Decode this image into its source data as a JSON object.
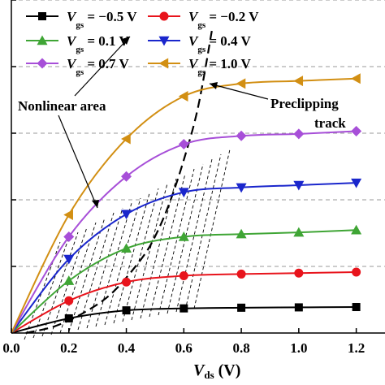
{
  "chart_data": {
    "type": "line",
    "xlabel": {
      "var": "V",
      "sub": "ds",
      "unit": " (V)"
    },
    "xlim": [
      0,
      1.3
    ],
    "ylim": [
      0,
      1.0
    ],
    "x_ticks": [
      "0.0",
      "0.2",
      "0.4",
      "0.6",
      "0.8",
      "1.0",
      "1.2"
    ],
    "grid_y": [
      0.2,
      0.4,
      0.6,
      0.8,
      1.0
    ],
    "x": [
      0.0,
      0.2,
      0.4,
      0.6,
      0.8,
      1.0,
      1.2
    ],
    "series": [
      {
        "name": "−0.5 V",
        "color": "#000000",
        "marker": "square",
        "values": [
          0.0,
          0.044,
          0.068,
          0.074,
          0.076,
          0.077,
          0.078
        ]
      },
      {
        "name": "−0.2 V",
        "color": "#e8141c",
        "marker": "circle",
        "values": [
          0.0,
          0.097,
          0.153,
          0.172,
          0.177,
          0.18,
          0.183
        ]
      },
      {
        "name": "0.1 V",
        "color": "#3fa535",
        "marker": "triangle-up",
        "values": [
          0.0,
          0.157,
          0.254,
          0.289,
          0.297,
          0.302,
          0.309
        ]
      },
      {
        "name": "0.4 V",
        "color": "#1a26cc",
        "marker": "triangle-down",
        "values": [
          0.0,
          0.222,
          0.357,
          0.423,
          0.437,
          0.444,
          0.451
        ]
      },
      {
        "name": "0.7 V",
        "color": "#a74fd8",
        "marker": "diamond",
        "values": [
          0.0,
          0.289,
          0.47,
          0.567,
          0.592,
          0.598,
          0.606
        ]
      },
      {
        "name": "1.0 V",
        "color": "#d28f13",
        "marker": "triangle-left",
        "values": [
          0.0,
          0.355,
          0.583,
          0.711,
          0.749,
          0.757,
          0.764
        ]
      }
    ],
    "legend": {
      "var": "V",
      "sub": "gs",
      "position": "top-left"
    },
    "annotations": [
      {
        "text": "Nonlinear area"
      },
      {
        "text": "Preclipping"
      },
      {
        "text": "track"
      }
    ],
    "preclipping_track_x": [
      0.05,
      0.15,
      0.25,
      0.35,
      0.45,
      0.5,
      0.55,
      0.6,
      0.65,
      0.7
    ],
    "preclipping_track_y": [
      0.0,
      0.02,
      0.06,
      0.12,
      0.22,
      0.29,
      0.39,
      0.52,
      0.68,
      0.92
    ]
  }
}
